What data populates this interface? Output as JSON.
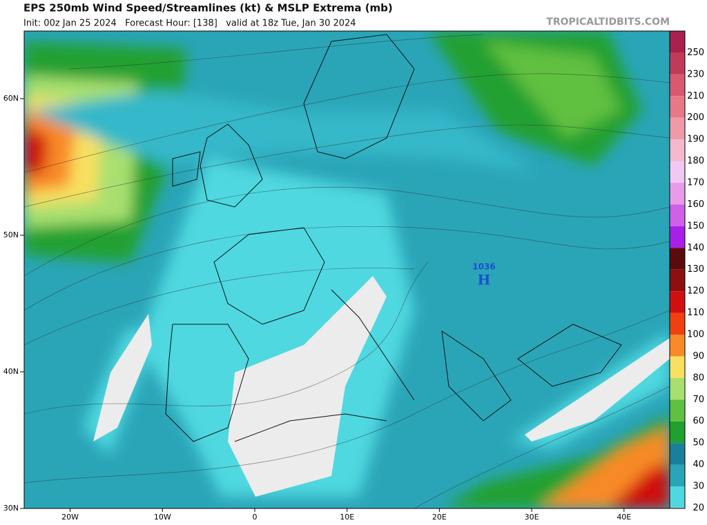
{
  "header": {
    "title": "EPS 250mb Wind Speed/Streamlines (kt) & MSLP Extrema (mb)",
    "subtitle": "Init: 00z Jan 25 2024   Forecast Hour: [138]   valid at 18z Tue, Jan 30 2024",
    "site": "TROPICALTIDBITS.COM"
  },
  "map": {
    "lat_labels": [
      {
        "value": 60,
        "label": "60N"
      },
      {
        "value": 50,
        "label": "50N"
      },
      {
        "value": 40,
        "label": "40N"
      },
      {
        "value": 30,
        "label": "30N"
      }
    ],
    "lon_labels": [
      {
        "value": -20,
        "label": "20W"
      },
      {
        "value": -10,
        "label": "10W"
      },
      {
        "value": 0,
        "label": "0"
      },
      {
        "value": 10,
        "label": "10E"
      },
      {
        "value": 20,
        "label": "20E"
      },
      {
        "value": 30,
        "label": "30E"
      },
      {
        "value": 40,
        "label": "40E"
      }
    ],
    "pressure_center": {
      "label": "1036",
      "symbol": "H"
    }
  },
  "colorbar": {
    "levels": [
      {
        "value": 250,
        "color": "#a8214a"
      },
      {
        "value": 230,
        "color": "#c23a5a"
      },
      {
        "value": 210,
        "color": "#d85a70"
      },
      {
        "value": 200,
        "color": "#e87888"
      },
      {
        "value": 190,
        "color": "#f09aa8"
      },
      {
        "value": 180,
        "color": "#f4b8cc"
      },
      {
        "value": 170,
        "color": "#f0c8f0"
      },
      {
        "value": 160,
        "color": "#e89ce8"
      },
      {
        "value": 150,
        "color": "#d060e8"
      },
      {
        "value": 140,
        "color": "#a820e8"
      },
      {
        "value": 130,
        "color": "#5a0c0c"
      },
      {
        "value": 120,
        "color": "#8c1010"
      },
      {
        "value": 110,
        "color": "#d01010"
      },
      {
        "value": 100,
        "color": "#f04010"
      },
      {
        "value": 90,
        "color": "#f88a28"
      },
      {
        "value": 80,
        "color": "#f8e060"
      },
      {
        "value": 70,
        "color": "#a8e070"
      },
      {
        "value": 60,
        "color": "#60c040"
      },
      {
        "value": 50,
        "color": "#20a030"
      },
      {
        "value": 40,
        "color": "#1a7f9a"
      },
      {
        "value": 30,
        "color": "#2aa5b8"
      },
      {
        "value": 20,
        "color": "#50d8e0"
      }
    ],
    "bottom_color": "#ffffff"
  }
}
